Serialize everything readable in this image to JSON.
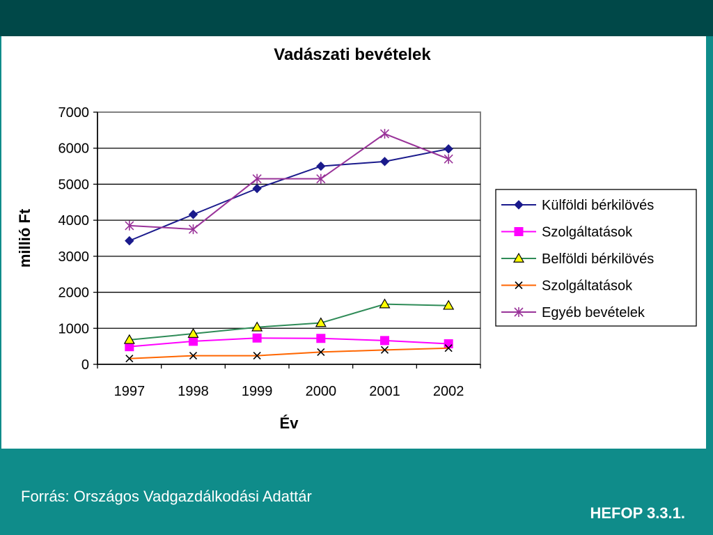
{
  "footer": {
    "source": "Forrás: Országos Vadgazdálkodási Adattár",
    "label": "HEFOP 3.3.1."
  },
  "chart_data": {
    "type": "line",
    "title": "Vadászati bevételek",
    "xlabel": "Év",
    "ylabel": "millió Ft",
    "x": [
      "1997",
      "1998",
      "1999",
      "2000",
      "2001",
      "2002"
    ],
    "ylim": [
      0,
      7000
    ],
    "yticks": [
      0,
      1000,
      2000,
      3000,
      4000,
      5000,
      6000,
      7000
    ],
    "grid": "horizontal",
    "legend_position": "right",
    "series": [
      {
        "name": "Külföldi bérkilövés",
        "color": "#1a1a8c",
        "marker": "diamond",
        "values": [
          3430,
          4160,
          4880,
          5500,
          5630,
          5980
        ]
      },
      {
        "name": "Szolgáltatások",
        "color": "#ff00ff",
        "marker": "square",
        "values": [
          490,
          640,
          730,
          720,
          660,
          570
        ]
      },
      {
        "name": "Belföldi bérkilövés",
        "color": "#2e8b57",
        "marker": "triangle",
        "values": [
          680,
          850,
          1030,
          1150,
          1670,
          1630
        ]
      },
      {
        "name": "Szolgáltatások",
        "color": "#ff6600",
        "marker": "x",
        "values": [
          160,
          240,
          240,
          340,
          400,
          450
        ]
      },
      {
        "name": "Egyéb bevételek",
        "color": "#993399",
        "marker": "asterisk",
        "values": [
          3850,
          3750,
          5150,
          5150,
          6400,
          5700
        ]
      }
    ]
  }
}
